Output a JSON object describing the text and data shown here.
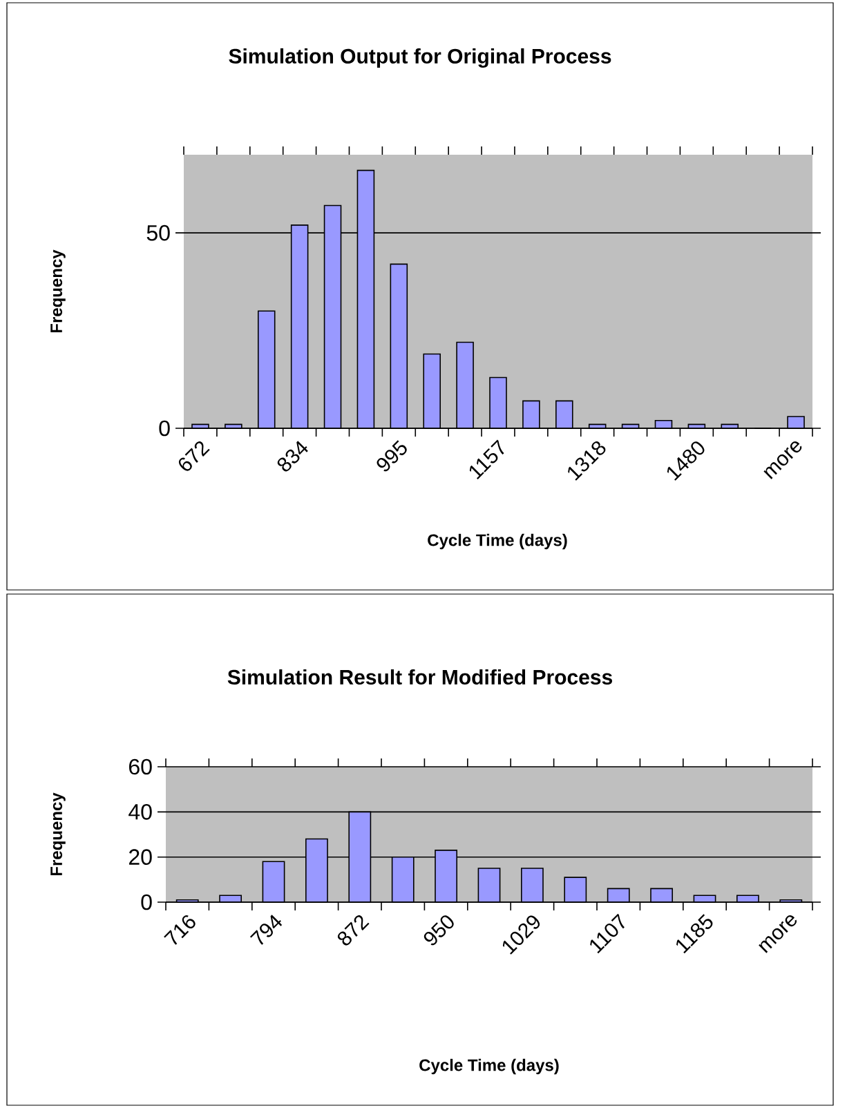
{
  "chart_data": [
    {
      "type": "bar",
      "title": "Simulation Output for Original Process",
      "xlabel": "Cycle Time (days)",
      "ylabel": "Frequency",
      "categories": [
        "672",
        null,
        null,
        "834",
        null,
        null,
        "995",
        null,
        null,
        "1157",
        null,
        null,
        "1318",
        null,
        null,
        "1480",
        null,
        null,
        "more"
      ],
      "values": [
        1,
        1,
        30,
        52,
        57,
        66,
        42,
        19,
        22,
        13,
        7,
        7,
        1,
        1,
        2,
        1,
        1,
        0,
        3
      ],
      "color": "#9999ff",
      "ylim": [
        0,
        70
      ],
      "yticks": [
        0,
        50
      ],
      "grid": "y"
    },
    {
      "type": "bar",
      "title": "Simulation Result for Modified Process",
      "xlabel": "Cycle Time (days)",
      "ylabel": "Frequency",
      "categories": [
        "716",
        null,
        "794",
        null,
        "872",
        null,
        "950",
        null,
        "1029",
        null,
        "1107",
        null,
        "1185",
        null,
        "more"
      ],
      "values": [
        1,
        3,
        18,
        28,
        40,
        20,
        23,
        15,
        15,
        11,
        6,
        6,
        3,
        3,
        1
      ],
      "color": "#9999ff",
      "ylim": [
        0,
        60
      ],
      "yticks": [
        0,
        20,
        40,
        60
      ],
      "grid": "y"
    }
  ]
}
